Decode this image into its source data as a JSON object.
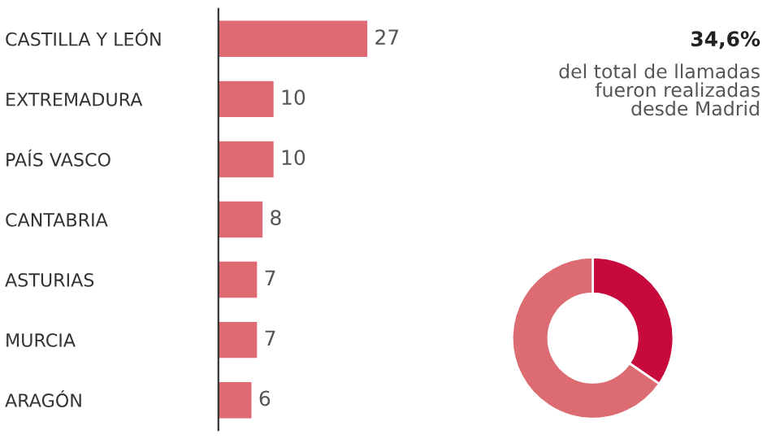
{
  "chart_data": [
    {
      "type": "bar",
      "orientation": "horizontal",
      "categories": [
        "CASTILLA Y LEÓN",
        "EXTREMADURA",
        "PAÍS VASCO",
        "CANTABRIA",
        "ASTURIAS",
        "MURCIA",
        "ARAGÓN"
      ],
      "values": [
        27,
        10,
        10,
        8,
        7,
        7,
        6
      ],
      "color": "#de6b74",
      "data_labels": true
    },
    {
      "type": "donut",
      "categories": [
        null,
        null
      ],
      "values": [
        34.6,
        65.4
      ],
      "colors": [
        "#c8093b",
        "#dc6b72"
      ],
      "annotations": [
        "34,6%",
        "del total de llamadas\nfueron realizadas\ndesde Madrid"
      ]
    }
  ]
}
